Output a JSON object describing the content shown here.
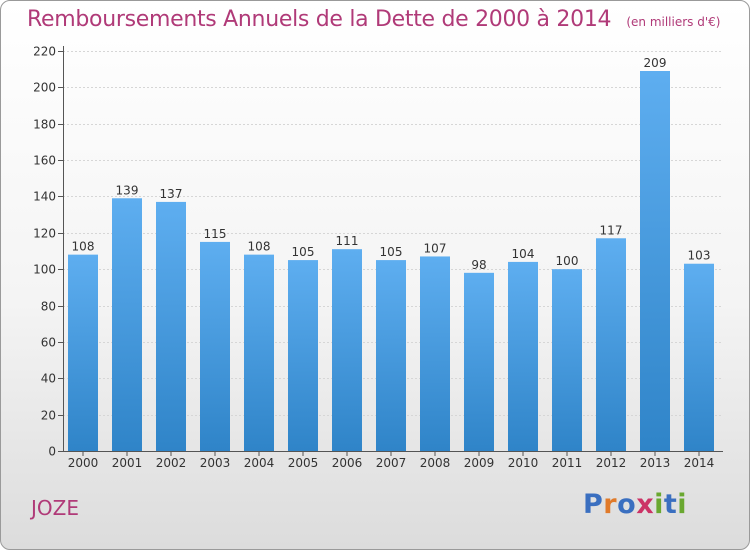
{
  "title": "Remboursements Annuels de la Dette de 2000 à 2014",
  "unit_label": "(en milliers d'€)",
  "commune": "JOZE",
  "logo": {
    "text": "Proxiti",
    "letters": [
      {
        "ch": "P",
        "color": "#3a6fc0"
      },
      {
        "ch": "r",
        "color": "#e07a2a"
      },
      {
        "ch": "o",
        "color": "#3a6fc0"
      },
      {
        "ch": "x",
        "color": "#cc3366"
      },
      {
        "ch": "i",
        "color": "#6aa830"
      },
      {
        "ch": "t",
        "color": "#3a6fc0"
      },
      {
        "ch": "i",
        "color": "#6aa830"
      }
    ]
  },
  "colors": {
    "accent": "#b03a78",
    "bar_top": "#5eaef0",
    "bar_bottom": "#2f84c8"
  },
  "chart_data": {
    "type": "bar",
    "title": "Remboursements Annuels de la Dette de 2000 à 2014",
    "xlabel": "",
    "ylabel": "",
    "categories": [
      "2000",
      "2001",
      "2002",
      "2003",
      "2004",
      "2005",
      "2006",
      "2007",
      "2008",
      "2009",
      "2010",
      "2011",
      "2012",
      "2013",
      "2014"
    ],
    "values": [
      108,
      139,
      137,
      115,
      108,
      105,
      111,
      105,
      107,
      98,
      104,
      100,
      117,
      209,
      103
    ],
    "data_labels": [
      "108",
      "139",
      "137",
      "115",
      "108",
      "105",
      "111",
      "105",
      "107",
      "98",
      "104",
      "100",
      "117",
      "209",
      "103"
    ],
    "ylim": [
      0,
      220
    ],
    "yticks": [
      0,
      20,
      40,
      60,
      80,
      100,
      120,
      140,
      160,
      180,
      200,
      220
    ],
    "grid": true
  }
}
